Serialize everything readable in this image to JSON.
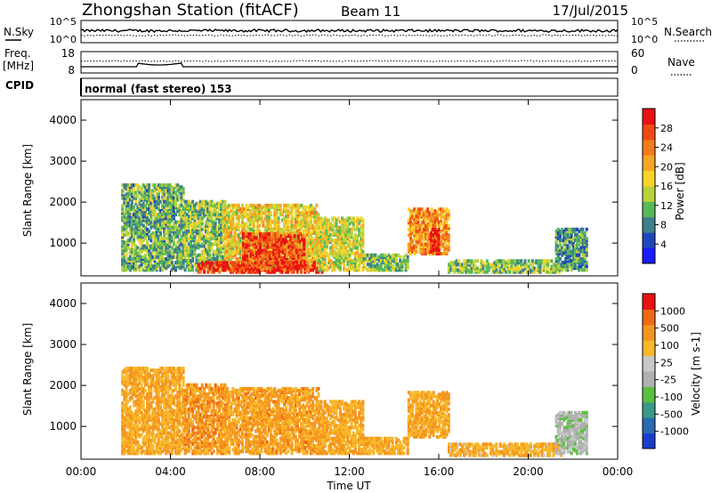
{
  "header": {
    "station": "Zhongshan Station (fitACF)",
    "beam": "Beam 11",
    "date": "17/Jul/2015"
  },
  "panels": {
    "noise": {
      "left_label": "N.Sky",
      "right_label": "N.Search",
      "ticks_left": [
        "10^5",
        "10^0"
      ],
      "ticks_right": [
        "10^5",
        "10^0"
      ]
    },
    "freq": {
      "left_label_1": "Freq.",
      "left_label_2": "[MHz]",
      "right_label": "Nave",
      "ticks_left": [
        "18",
        "8"
      ],
      "ticks_right": [
        "60",
        "0"
      ]
    },
    "cpid": {
      "label": "CPID",
      "mode": "normal (fast stereo) 153"
    }
  },
  "chart_data": [
    {
      "type": "heatmap",
      "name": "Power",
      "ylabel": "Slant Range [km]",
      "xlabel": "Time UT",
      "yticks": [
        "1000",
        "2000",
        "3000",
        "4000"
      ],
      "ylim": [
        200,
        4500
      ],
      "xlim_hours": [
        0,
        24
      ],
      "colorbar": {
        "label": "Power [dB]",
        "tick_labels": [
          "4",
          "8",
          "12",
          "16",
          "20",
          "24",
          "28"
        ],
        "colors": [
          "#1a1aff",
          "#2244bb",
          "#3d7f8a",
          "#58b858",
          "#b8d23c",
          "#f7d42a",
          "#f5a623",
          "#f57a1a",
          "#f04a12",
          "#e81212"
        ]
      },
      "echo_regions": [
        {
          "t0": 1.8,
          "t1": 4.6,
          "r0": 300,
          "r1": 2400,
          "level": 0.35
        },
        {
          "t0": 4.6,
          "t1": 6.4,
          "r0": 300,
          "r1": 2000,
          "level": 0.4
        },
        {
          "t0": 6.4,
          "t1": 10.6,
          "r0": 300,
          "r1": 1900,
          "level": 0.55
        },
        {
          "t0": 7.2,
          "t1": 10.0,
          "r0": 500,
          "r1": 1200,
          "level": 0.85
        },
        {
          "t0": 5.2,
          "t1": 10.8,
          "r0": 250,
          "r1": 500,
          "level": 0.9
        },
        {
          "t0": 10.6,
          "t1": 12.6,
          "r0": 300,
          "r1": 1600,
          "level": 0.5
        },
        {
          "t0": 12.6,
          "t1": 14.6,
          "r0": 300,
          "r1": 700,
          "level": 0.4
        },
        {
          "t0": 14.6,
          "t1": 16.4,
          "r0": 700,
          "r1": 1800,
          "level": 0.7
        },
        {
          "t0": 15.6,
          "t1": 16.0,
          "r0": 700,
          "r1": 1300,
          "level": 0.95
        },
        {
          "t0": 16.4,
          "t1": 21.5,
          "r0": 250,
          "r1": 550,
          "level": 0.4
        },
        {
          "t0": 21.2,
          "t1": 22.6,
          "r0": 300,
          "r1": 1300,
          "level": 0.3
        }
      ]
    },
    {
      "type": "heatmap",
      "name": "Velocity",
      "ylabel": "Slant Range [km]",
      "xlabel": "Time UT",
      "yticks": [
        "1000",
        "2000",
        "3000",
        "4000"
      ],
      "ylim": [
        200,
        4500
      ],
      "xlim_hours": [
        0,
        24
      ],
      "xticks": [
        "00:00",
        "04:00",
        "08:00",
        "12:00",
        "16:00",
        "20:00",
        "00:00"
      ],
      "colorbar": {
        "label": "Velocity [m s-1]",
        "tick_labels": [
          "1000",
          "500",
          "100",
          "25",
          "-25",
          "-100",
          "-500",
          "-1000"
        ],
        "colors": [
          "#1a3dcc",
          "#2a6ab0",
          "#3a9a86",
          "#5ac040",
          "#b0b0b0",
          "#c8c8c8",
          "#f7b82a",
          "#f5951e",
          "#f06a12",
          "#e81212"
        ]
      },
      "echo_regions": [
        {
          "t0": 1.8,
          "t1": 4.6,
          "r0": 300,
          "r1": 2400,
          "level": 0.7
        },
        {
          "t0": 4.6,
          "t1": 6.4,
          "r0": 300,
          "r1": 2000,
          "level": 0.75
        },
        {
          "t0": 6.4,
          "t1": 10.6,
          "r0": 300,
          "r1": 1900,
          "level": 0.72
        },
        {
          "t0": 10.6,
          "t1": 12.6,
          "r0": 300,
          "r1": 1600,
          "level": 0.7
        },
        {
          "t0": 12.6,
          "t1": 14.6,
          "r0": 300,
          "r1": 700,
          "level": 0.7
        },
        {
          "t0": 14.6,
          "t1": 16.4,
          "r0": 700,
          "r1": 1800,
          "level": 0.7
        },
        {
          "t0": 16.4,
          "t1": 21.5,
          "r0": 250,
          "r1": 550,
          "level": 0.68
        },
        {
          "t0": 21.2,
          "t1": 22.6,
          "r0": 300,
          "r1": 1300,
          "level": 0.45
        }
      ]
    }
  ]
}
